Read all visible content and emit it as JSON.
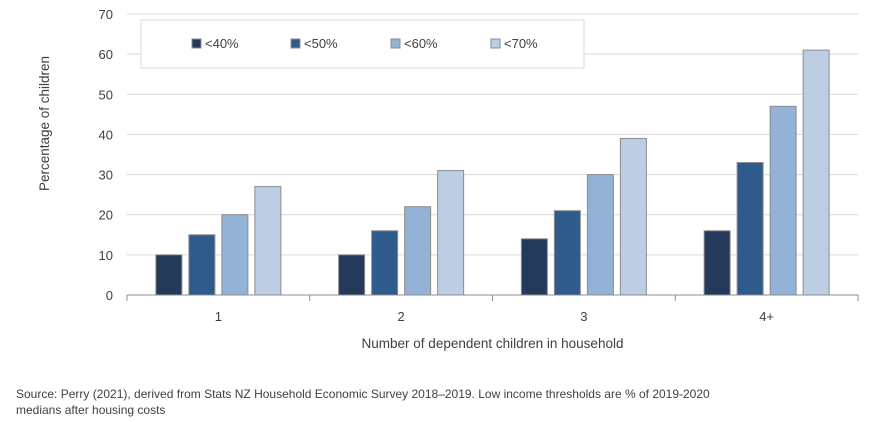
{
  "chart_data": {
    "type": "bar",
    "categories": [
      "1",
      "2",
      "3",
      "4+"
    ],
    "series": [
      {
        "name": "<40%",
        "values": [
          10,
          10,
          14,
          16
        ],
        "color": "#243a5a"
      },
      {
        "name": "<50%",
        "values": [
          15,
          16,
          21,
          33
        ],
        "color": "#2e5a8c"
      },
      {
        "name": "<60%",
        "values": [
          20,
          22,
          30,
          47
        ],
        "color": "#94b2d6"
      },
      {
        "name": "<70%",
        "values": [
          27,
          31,
          39,
          61
        ],
        "color": "#bccde4"
      }
    ],
    "xlabel": "Number of dependent children in household",
    "ylabel": "Percentage of children",
    "ylim": [
      0,
      70
    ],
    "yticks": [
      0,
      10,
      20,
      30,
      40,
      50,
      60,
      70
    ],
    "grid": true,
    "legend_position": "top-left",
    "bar_edge_color": "#8c8c8c",
    "grid_color": "#d9d9d9"
  },
  "source_note": "Source: Perry (2021), derived from Stats NZ Household Economic Survey 2018–2019. Low income thresholds are % of 2019-2020 medians after housing costs"
}
